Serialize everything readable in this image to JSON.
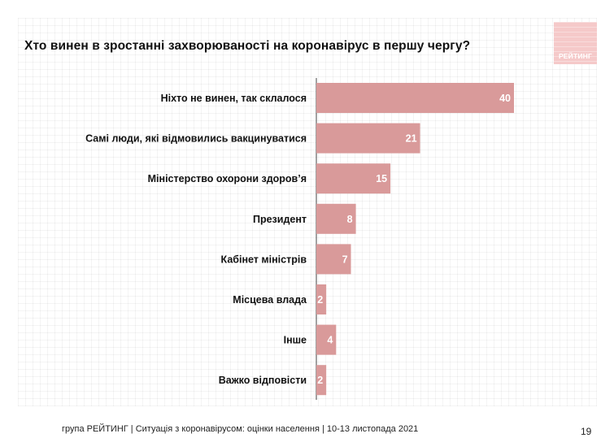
{
  "title": "Хто винен в зростанні захворюваності на коронавірус в першу чергу?",
  "logo": {
    "text": "РЕЙТИНГ"
  },
  "footer": "група РЕЙТИНГ | Ситуація з коронавірусом: оцінки населення | 10-13 листопада 2021",
  "page_number": "19",
  "colors": {
    "bar": "#d99a9a",
    "label_on_bar": "#ffffff",
    "logo_bg": "#f5c9c9"
  },
  "chart_data": {
    "type": "bar",
    "orientation": "horizontal",
    "title": "Хто винен в зростанні захворюваності на коронавірус в першу чергу?",
    "categories": [
      "Ніхто не винен, так склалося",
      "Самі люди, які відмовились вакцинуватися",
      "Міністерство охорони здоров’я",
      "Президент",
      "Кабінет міністрів",
      "Місцева влада",
      "Інше",
      "Важко відповісти"
    ],
    "values": [
      40,
      21,
      15,
      8,
      7,
      2,
      4,
      2
    ],
    "xlim": [
      0,
      40
    ],
    "grid": false,
    "data_labels": true
  }
}
